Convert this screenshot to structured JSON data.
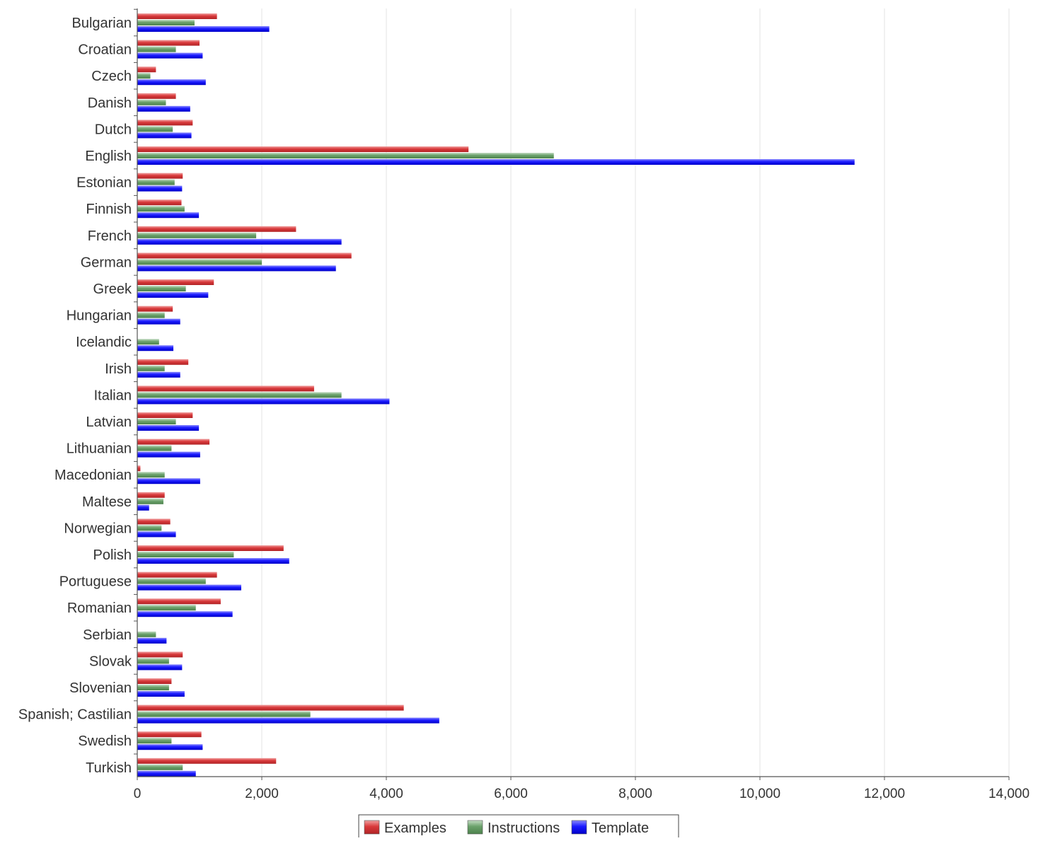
{
  "chart_data": {
    "type": "bar",
    "orientation": "horizontal",
    "title": "",
    "xlabel": "",
    "ylabel": "",
    "xlim": [
      0,
      14000
    ],
    "x_ticks": [
      0,
      2000,
      4000,
      6000,
      8000,
      10000,
      12000,
      14000
    ],
    "x_tick_labels": [
      "0",
      "2,000",
      "4,000",
      "6,000",
      "8,000",
      "10,000",
      "12,000",
      "14,000"
    ],
    "grid": "vertical",
    "legend_position": "bottom-center",
    "categories": [
      "Bulgarian",
      "Croatian",
      "Czech",
      "Danish",
      "Dutch",
      "English",
      "Estonian",
      "Finnish",
      "French",
      "German",
      "Greek",
      "Hungarian",
      "Icelandic",
      "Irish",
      "Italian",
      "Latvian",
      "Lithuanian",
      "Macedonian",
      "Maltese",
      "Norwegian",
      "Polish",
      "Portuguese",
      "Romanian",
      "Serbian",
      "Slovak",
      "Slovenian",
      "Spanish; Castilian",
      "Swedish",
      "Turkish"
    ],
    "series": [
      {
        "name": "Examples",
        "color": "#d9393b",
        "values": [
          1280,
          1000,
          300,
          620,
          890,
          5320,
          730,
          710,
          2550,
          3440,
          1230,
          570,
          0,
          820,
          2840,
          890,
          1160,
          50,
          440,
          530,
          2350,
          1280,
          1340,
          0,
          730,
          550,
          4280,
          1030,
          2230
        ]
      },
      {
        "name": "Instructions",
        "color": "#6aa16a",
        "values": [
          920,
          620,
          210,
          460,
          570,
          6690,
          600,
          760,
          1910,
          2000,
          780,
          440,
          350,
          440,
          3280,
          620,
          550,
          440,
          420,
          390,
          1550,
          1100,
          940,
          300,
          510,
          510,
          2780,
          550,
          730
        ]
      },
      {
        "name": "Template",
        "color": "#1a1aff",
        "values": [
          2120,
          1050,
          1100,
          850,
          870,
          11520,
          720,
          990,
          3280,
          3190,
          1140,
          690,
          580,
          690,
          4050,
          990,
          1010,
          1010,
          190,
          620,
          2440,
          1670,
          1530,
          470,
          720,
          760,
          4850,
          1050,
          940
        ]
      }
    ]
  }
}
